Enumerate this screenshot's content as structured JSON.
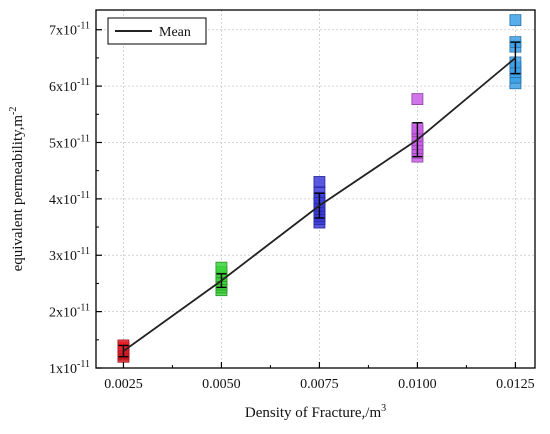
{
  "chart_data": {
    "type": "scatter",
    "title": "",
    "xlabel": "Density of Fracture,/m",
    "xlabel_sup": "3",
    "ylabel": "equivalent permeability,m",
    "ylabel_sup": "-2",
    "xlim": [
      0.0018,
      0.013
    ],
    "ylim": [
      1e-11,
      7.35e-11
    ],
    "grid": true,
    "legend": {
      "position": "top-left",
      "entries": [
        "Mean"
      ]
    },
    "x_ticks": [
      {
        "value": 0.0025,
        "label": "0.0025"
      },
      {
        "value": 0.005,
        "label": "0.0050"
      },
      {
        "value": 0.0075,
        "label": "0.0075"
      },
      {
        "value": 0.01,
        "label": "0.0100"
      },
      {
        "value": 0.0125,
        "label": "0.0125"
      }
    ],
    "y_ticks": [
      {
        "value": 1e-11,
        "label": "1x10",
        "exp": "-11"
      },
      {
        "value": 2e-11,
        "label": "2x10",
        "exp": "-11"
      },
      {
        "value": 3e-11,
        "label": "3x10",
        "exp": "-11"
      },
      {
        "value": 4e-11,
        "label": "4x10",
        "exp": "-11"
      },
      {
        "value": 5e-11,
        "label": "5x10",
        "exp": "-11"
      },
      {
        "value": 6e-11,
        "label": "6x10",
        "exp": "-11"
      },
      {
        "value": 7e-11,
        "label": "7x10",
        "exp": "-11"
      }
    ],
    "groups": [
      {
        "x": 0.0025,
        "color": "#e8202a",
        "points": [
          1.2e-11,
          1.24e-11,
          1.27e-11,
          1.3e-11,
          1.33e-11,
          1.36e-11,
          1.4e-11
        ],
        "mean": 1.3e-11,
        "err": 1e-12
      },
      {
        "x": 0.005,
        "color": "#3cd23c",
        "points": [
          2.38e-11,
          2.43e-11,
          2.48e-11,
          2.53e-11,
          2.58e-11,
          2.63e-11,
          2.7e-11,
          2.78e-11
        ],
        "mean": 2.55e-11,
        "err": 1.2e-12
      },
      {
        "x": 0.0075,
        "color": "#3b3bdb",
        "points": [
          3.58e-11,
          3.64e-11,
          3.7e-11,
          3.76e-11,
          3.82e-11,
          3.88e-11,
          3.94e-11,
          4.02e-11,
          4.12e-11,
          4.3e-11
        ],
        "mean": 3.88e-11,
        "err": 2.2e-12
      },
      {
        "x": 0.01,
        "color": "#c95ee6",
        "points": [
          4.75e-11,
          4.82e-11,
          4.9e-11,
          4.97e-11,
          5.04e-11,
          5.12e-11,
          5.2e-11,
          5.25e-11,
          5.77e-11
        ],
        "mean": 5.05e-11,
        "err": 3e-12
      },
      {
        "x": 0.0125,
        "color": "#3aa0e8",
        "points": [
          6.05e-11,
          6.15e-11,
          6.25e-11,
          6.33e-11,
          6.42e-11,
          6.7e-11,
          6.78e-11,
          7.17e-11
        ],
        "mean": 6.5e-11,
        "err": 2.8e-12
      }
    ],
    "mean_line": {
      "name": "Mean",
      "x": [
        0.0025,
        0.005,
        0.0075,
        0.01,
        0.0125
      ],
      "y": [
        1.3e-11,
        2.55e-11,
        3.88e-11,
        5.05e-11,
        6.5e-11
      ]
    }
  }
}
